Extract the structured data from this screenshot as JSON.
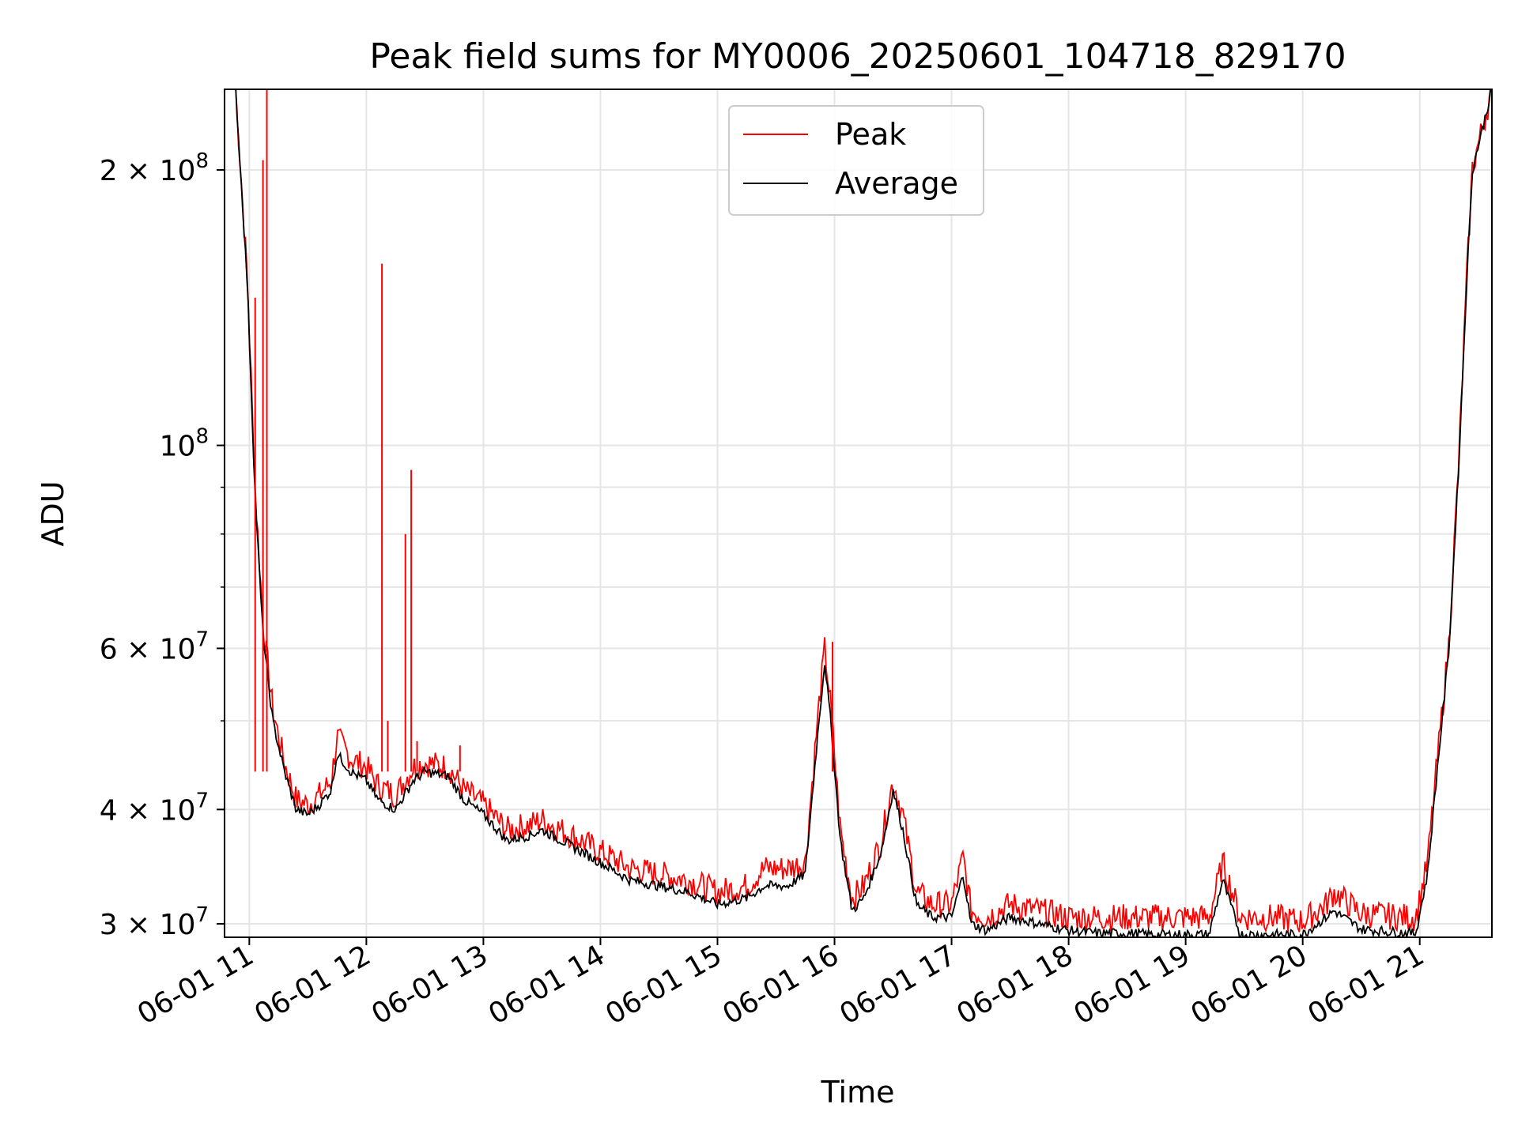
{
  "chart_data": {
    "type": "line",
    "title": "Peak field sums for MY0006_20250601_104718_829170",
    "xlabel": "Time",
    "ylabel": "ADU",
    "y_scale": "log",
    "ylim": [
      29000000,
      245000000
    ],
    "xlim": [
      "2025-06-01T10:47:18",
      "2025-06-01T21:37:00"
    ],
    "grid": true,
    "legend": {
      "placement": "top-center",
      "entries": [
        "Peak",
        "Average"
      ]
    },
    "x_ticks": [
      {
        "value": "2025-06-01T11:00",
        "label": "06-01 11"
      },
      {
        "value": "2025-06-01T12:00",
        "label": "06-01 12"
      },
      {
        "value": "2025-06-01T13:00",
        "label": "06-01 13"
      },
      {
        "value": "2025-06-01T14:00",
        "label": "06-01 14"
      },
      {
        "value": "2025-06-01T15:00",
        "label": "06-01 15"
      },
      {
        "value": "2025-06-01T16:00",
        "label": "06-01 16"
      },
      {
        "value": "2025-06-01T17:00",
        "label": "06-01 17"
      },
      {
        "value": "2025-06-01T18:00",
        "label": "06-01 18"
      },
      {
        "value": "2025-06-01T19:00",
        "label": "06-01 19"
      },
      {
        "value": "2025-06-01T20:00",
        "label": "06-01 20"
      },
      {
        "value": "2025-06-01T21:00",
        "label": "06-01 21"
      }
    ],
    "y_ticks": [
      {
        "value": 30000000,
        "base": "3 × 10",
        "exp": "7"
      },
      {
        "value": 40000000,
        "base": "4 × 10",
        "exp": "7"
      },
      {
        "value": 60000000,
        "base": "6 × 10",
        "exp": "7"
      },
      {
        "value": 100000000,
        "base": "10",
        "exp": "8"
      },
      {
        "value": 200000000,
        "base": "2 × 10",
        "exp": "8"
      }
    ],
    "series": [
      {
        "name": "Average",
        "color": "#000000",
        "x": [
          "2025-06-01T10:53",
          "2025-06-01T10:59",
          "2025-06-01T11:03",
          "2025-06-01T11:07",
          "2025-06-01T11:12",
          "2025-06-01T11:18",
          "2025-06-01T11:24",
          "2025-06-01T11:30",
          "2025-06-01T11:36",
          "2025-06-01T11:42",
          "2025-06-01T11:45",
          "2025-06-01T11:52",
          "2025-06-01T12:00",
          "2025-06-01T12:06",
          "2025-06-01T12:15",
          "2025-06-01T12:24",
          "2025-06-01T12:30",
          "2025-06-01T12:42",
          "2025-06-01T12:50",
          "2025-06-01T13:00",
          "2025-06-01T13:12",
          "2025-06-01T13:24",
          "2025-06-01T13:30",
          "2025-06-01T13:45",
          "2025-06-01T14:00",
          "2025-06-01T14:15",
          "2025-06-01T14:30",
          "2025-06-01T14:45",
          "2025-06-01T15:00",
          "2025-06-01T15:15",
          "2025-06-01T15:24",
          "2025-06-01T15:36",
          "2025-06-01T15:45",
          "2025-06-01T15:52",
          "2025-06-01T15:55",
          "2025-06-01T15:58",
          "2025-06-01T16:03",
          "2025-06-01T16:09",
          "2025-06-01T16:15",
          "2025-06-01T16:24",
          "2025-06-01T16:30",
          "2025-06-01T16:35",
          "2025-06-01T16:42",
          "2025-06-01T16:50",
          "2025-06-01T17:00",
          "2025-06-01T17:06",
          "2025-06-01T17:10",
          "2025-06-01T17:18",
          "2025-06-01T17:30",
          "2025-06-01T17:45",
          "2025-06-01T18:00",
          "2025-06-01T18:15",
          "2025-06-01T18:30",
          "2025-06-01T18:45",
          "2025-06-01T19:00",
          "2025-06-01T19:12",
          "2025-06-01T19:19",
          "2025-06-01T19:22",
          "2025-06-01T19:28",
          "2025-06-01T19:45",
          "2025-06-01T20:00",
          "2025-06-01T20:12",
          "2025-06-01T20:16",
          "2025-06-01T20:30",
          "2025-06-01T20:45",
          "2025-06-01T20:58",
          "2025-06-01T21:04",
          "2025-06-01T21:08",
          "2025-06-01T21:15",
          "2025-06-01T21:20",
          "2025-06-01T21:24",
          "2025-06-01T21:27",
          "2025-06-01T21:37"
        ],
        "values": [
          245000000,
          150000000,
          88000000,
          62000000,
          50000000,
          44000000,
          40000000,
          39500000,
          40500000,
          42000000,
          46000000,
          44000000,
          43000000,
          41000000,
          40000000,
          43000000,
          44000000,
          43500000,
          41000000,
          39500000,
          37000000,
          37500000,
          38000000,
          36500000,
          35000000,
          33500000,
          33000000,
          32500000,
          31500000,
          32000000,
          33000000,
          33000000,
          34000000,
          50000000,
          58000000,
          50000000,
          37000000,
          31000000,
          32000000,
          36000000,
          42000000,
          38000000,
          31500000,
          30500000,
          30500000,
          34000000,
          30000000,
          29500000,
          30500000,
          30000000,
          29500000,
          29300000,
          29300000,
          29200000,
          29200000,
          29200000,
          33500000,
          32000000,
          29200000,
          29200000,
          29200000,
          30500000,
          31000000,
          29600000,
          29400000,
          29300000,
          34000000,
          42000000,
          60000000,
          95000000,
          150000000,
          200000000,
          245000000
        ]
      },
      {
        "name": "Peak",
        "color": "#ff0000",
        "x": [
          "2025-06-01T10:53",
          "2025-06-01T10:59",
          "2025-06-01T11:03",
          "2025-06-01T11:07",
          "2025-06-01T11:12",
          "2025-06-01T11:18",
          "2025-06-01T11:24",
          "2025-06-01T11:30",
          "2025-06-01T11:36",
          "2025-06-01T11:42",
          "2025-06-01T11:45",
          "2025-06-01T11:52",
          "2025-06-01T12:00",
          "2025-06-01T12:06",
          "2025-06-01T12:15",
          "2025-06-01T12:24",
          "2025-06-01T12:30",
          "2025-06-01T12:42",
          "2025-06-01T12:50",
          "2025-06-01T13:00",
          "2025-06-01T13:12",
          "2025-06-01T13:24",
          "2025-06-01T13:30",
          "2025-06-01T13:45",
          "2025-06-01T14:00",
          "2025-06-01T14:15",
          "2025-06-01T14:30",
          "2025-06-01T14:45",
          "2025-06-01T15:00",
          "2025-06-01T15:15",
          "2025-06-01T15:24",
          "2025-06-01T15:36",
          "2025-06-01T15:45",
          "2025-06-01T15:52",
          "2025-06-01T15:55",
          "2025-06-01T15:58",
          "2025-06-01T16:03",
          "2025-06-01T16:09",
          "2025-06-01T16:15",
          "2025-06-01T16:24",
          "2025-06-01T16:30",
          "2025-06-01T16:35",
          "2025-06-01T16:42",
          "2025-06-01T16:50",
          "2025-06-01T17:00",
          "2025-06-01T17:06",
          "2025-06-01T17:10",
          "2025-06-01T17:18",
          "2025-06-01T17:30",
          "2025-06-01T17:45",
          "2025-06-01T18:00",
          "2025-06-01T18:15",
          "2025-06-01T18:30",
          "2025-06-01T18:45",
          "2025-06-01T19:00",
          "2025-06-01T19:12",
          "2025-06-01T19:19",
          "2025-06-01T19:22",
          "2025-06-01T19:28",
          "2025-06-01T19:45",
          "2025-06-01T20:00",
          "2025-06-01T20:12",
          "2025-06-01T20:16",
          "2025-06-01T20:30",
          "2025-06-01T20:45",
          "2025-06-01T20:58",
          "2025-06-01T21:04",
          "2025-06-01T21:08",
          "2025-06-01T21:15",
          "2025-06-01T21:20",
          "2025-06-01T21:24",
          "2025-06-01T21:27",
          "2025-06-01T21:37"
        ],
        "values": [
          245000000,
          152000000,
          90000000,
          64000000,
          51500000,
          45000000,
          41000000,
          40500000,
          41500000,
          43000000,
          48000000,
          45500000,
          44500000,
          42500000,
          41500000,
          44500000,
          45000000,
          44500000,
          42000000,
          40500000,
          38000000,
          38500000,
          39000000,
          37500000,
          36000000,
          34500000,
          34000000,
          33500000,
          32500000,
          33000000,
          34500000,
          34500000,
          35000000,
          52000000,
          60000000,
          52000000,
          38000000,
          32000000,
          33000000,
          37000000,
          43000000,
          39500000,
          32500000,
          31500000,
          31500000,
          35500000,
          31000000,
          30500000,
          31500000,
          31000000,
          30500000,
          30500000,
          30500000,
          30500000,
          30500000,
          30500000,
          35000000,
          33500000,
          30500000,
          30500000,
          30200000,
          31500000,
          32500000,
          30800000,
          30600000,
          30500000,
          35000000,
          43000000,
          61000000,
          96000000,
          151000000,
          201000000,
          245000000
        ]
      }
    ],
    "peak_spikes": [
      {
        "x": "2025-06-01T11:03",
        "value": 145000000
      },
      {
        "x": "2025-06-01T11:07",
        "value": 205000000
      },
      {
        "x": "2025-06-01T11:09",
        "value": 245000000
      },
      {
        "x": "2025-06-01T12:08",
        "value": 158000000
      },
      {
        "x": "2025-06-01T12:11",
        "value": 50000000
      },
      {
        "x": "2025-06-01T12:20",
        "value": 80000000
      },
      {
        "x": "2025-06-01T12:23",
        "value": 94000000
      },
      {
        "x": "2025-06-01T12:26",
        "value": 47500000
      },
      {
        "x": "2025-06-01T12:48",
        "value": 47000000
      },
      {
        "x": "2025-06-01T15:59",
        "value": 61000000
      },
      {
        "x": "2025-06-01T17:07",
        "value": 35500000
      },
      {
        "x": "2025-06-01T19:20",
        "value": 35000000
      }
    ]
  }
}
